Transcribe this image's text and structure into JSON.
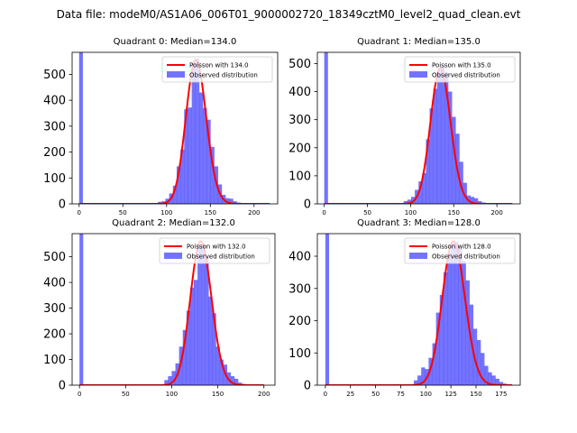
{
  "figure": {
    "suptitle": "Data file: modeM0/AS1A06_006T01_9000002720_18349cztM0_level2_quad_clean.evt",
    "colors": {
      "hist": "#0000ff",
      "curve": "#ff0000",
      "axis": "#000000"
    }
  },
  "chart_data": [
    {
      "type": "histogram+line",
      "title": "Quadrant 0: Median=134.0",
      "xlim": [
        -8,
        227
      ],
      "ylim": [
        0,
        585
      ],
      "xticks": [
        0,
        50,
        100,
        150,
        200
      ],
      "yticks": [
        0,
        100,
        200,
        300,
        400,
        500
      ],
      "legend": {
        "position": "top-right",
        "curve": "Poisson with 134.0",
        "hist": "Observed distribution"
      },
      "median": 134.0,
      "zero_bin": {
        "x0": 0,
        "x1": 4.3,
        "count": 585
      },
      "bins": {
        "x": [
          90,
          94.3,
          98.6,
          102.9,
          107.2,
          111.5,
          115.8,
          120.1,
          124.4,
          128.7,
          133,
          137.3,
          141.6,
          145.9,
          150.2,
          154.5,
          158.8,
          163.1,
          167.4,
          171.7,
          176,
          180.3,
          184.6
        ],
        "counts": [
          8,
          10,
          20,
          40,
          70,
          145,
          210,
          365,
          372,
          545,
          560,
          430,
          370,
          325,
          220,
          145,
          75,
          35,
          22,
          20,
          10,
          5,
          2
        ]
      },
      "curve": {
        "x": [
          0,
          218
        ],
        "peak": 556
      }
    },
    {
      "type": "histogram+line",
      "title": "Quadrant 1: Median=135.0",
      "xlim": [
        -8,
        227
      ],
      "ylim": [
        0,
        540
      ],
      "xticks": [
        0,
        50,
        100,
        150,
        200
      ],
      "yticks": [
        0,
        100,
        200,
        300,
        400,
        500
      ],
      "legend": {
        "position": "top-right",
        "curve": "Poisson with 135.0",
        "hist": "Observed distribution"
      },
      "median": 135.0,
      "zero_bin": {
        "x0": 0,
        "x1": 4.3,
        "count": 540
      },
      "bins": {
        "x": [
          92,
          96.3,
          100.6,
          104.9,
          109.2,
          113.5,
          117.8,
          122.1,
          126.4,
          130.7,
          135,
          139.3,
          143.6,
          147.9,
          152.2,
          156.5,
          160.8,
          165.1,
          169.4,
          173.7,
          178,
          182.3,
          186.6
        ],
        "counts": [
          10,
          15,
          25,
          50,
          80,
          110,
          230,
          340,
          410,
          475,
          490,
          470,
          400,
          310,
          250,
          150,
          75,
          30,
          25,
          20,
          10,
          5,
          2
        ]
      },
      "curve": {
        "x": [
          0,
          218
        ],
        "peak": 482
      }
    },
    {
      "type": "histogram+line",
      "title": "Quadrant 2: Median=132.0",
      "xlim": [
        -8,
        212
      ],
      "ylim": [
        0,
        590
      ],
      "xticks": [
        0,
        50,
        100,
        150,
        200
      ],
      "yticks": [
        0,
        100,
        200,
        300,
        400,
        500
      ],
      "legend": {
        "position": "top-right",
        "curve": "Poisson with 132.0",
        "hist": "Observed distribution"
      },
      "median": 132.0,
      "zero_bin": {
        "x0": 0,
        "x1": 4.0,
        "count": 590
      },
      "bins": {
        "x": [
          92,
          96,
          100,
          104,
          108,
          112,
          116,
          120,
          124,
          128,
          132,
          136,
          140,
          144,
          148,
          152,
          156,
          160,
          164,
          168,
          172,
          176,
          180
        ],
        "counts": [
          20,
          35,
          55,
          85,
          150,
          215,
          290,
          380,
          410,
          545,
          545,
          500,
          345,
          280,
          150,
          100,
          80,
          50,
          35,
          25,
          10,
          5,
          3
        ]
      },
      "curve": {
        "x": [
          0,
          200
        ],
        "peak": 560
      }
    },
    {
      "type": "histogram+line",
      "title": "Quadrant 3: Median=128.0",
      "xlim": [
        -8,
        194
      ],
      "ylim": [
        0,
        470
      ],
      "xticks": [
        0,
        25,
        50,
        75,
        100,
        125,
        150,
        175
      ],
      "yticks": [
        0,
        100,
        200,
        300,
        400
      ],
      "legend": {
        "position": "top-right",
        "curve": "Poisson with 128.0",
        "hist": "Observed distribution"
      },
      "median": 128.0,
      "zero_bin": {
        "x0": 0,
        "x1": 3.7,
        "count": 470
      },
      "bins": {
        "x": [
          88,
          91.7,
          95.4,
          99.1,
          102.8,
          106.5,
          110.2,
          113.9,
          117.6,
          121.3,
          125,
          128.7,
          132.4,
          136.1,
          139.8,
          143.5,
          147.2,
          150.9,
          154.6,
          158.3,
          162,
          165.7,
          169.4,
          173.1,
          176.8
        ],
        "counts": [
          15,
          30,
          55,
          50,
          85,
          130,
          225,
          280,
          350,
          410,
          440,
          445,
          425,
          385,
          325,
          250,
          175,
          140,
          100,
          60,
          40,
          30,
          20,
          10,
          5
        ]
      },
      "curve": {
        "x": [
          0,
          186
        ],
        "peak": 446
      }
    }
  ]
}
